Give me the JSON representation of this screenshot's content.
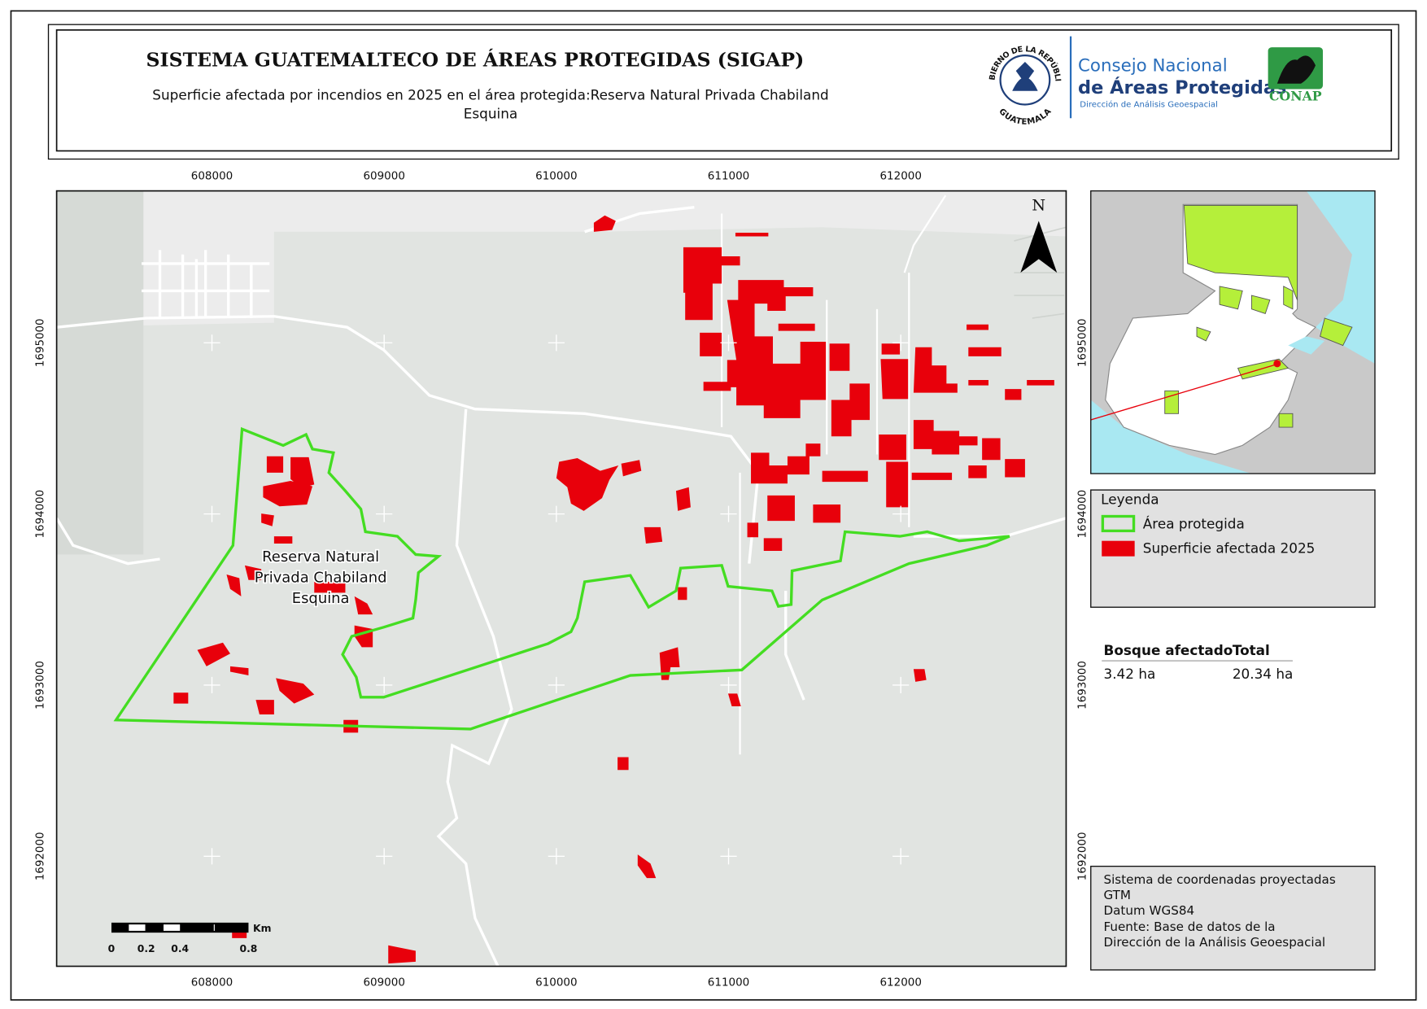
{
  "header": {
    "title": "SISTEMA GUATEMALTECO DE ÁREAS PROTEGIDAS  (SIGAP)",
    "subtitle_line1": "Superficie afectada por incendios en 2025 en el área protegida:Reserva Natural Privada Chabiland",
    "subtitle_line2": "Esquina"
  },
  "logos": {
    "seal_top": "GOBIERNO DE LA REPÚBLICA",
    "seal_bottom": "GUATEMALA",
    "council_line1": "Consejo Nacional",
    "council_line2": "de Áreas Protegidas",
    "council_line3": "Dirección de Análisis Geoespacial",
    "conap": "CONAP"
  },
  "map": {
    "xticks": [
      608000,
      609000,
      610000,
      611000,
      612000
    ],
    "yticks": [
      1692000,
      1693000,
      1694000,
      1695000
    ],
    "north": "N",
    "area_label": [
      "Reserva Natural",
      "Privada Chabiland",
      "Esquina"
    ],
    "scale_unit": "Km",
    "scale_labels": [
      "0",
      "0.2",
      "0.4",
      "0.8"
    ]
  },
  "legend": {
    "title": "Leyenda",
    "items": [
      "Área protegida",
      "Superficie afectada 2025"
    ]
  },
  "table": {
    "headers": [
      "Bosque afectado",
      "Total"
    ],
    "rows": [
      [
        "3.42 ha",
        "20.34 ha"
      ]
    ]
  },
  "info": [
    "Sistema de coordenadas proyectadas",
    "GTM",
    "Datum WGS84",
    "Fuente: Base de datos de la",
    "Dirección de la Análisis Geoespacial"
  ]
}
